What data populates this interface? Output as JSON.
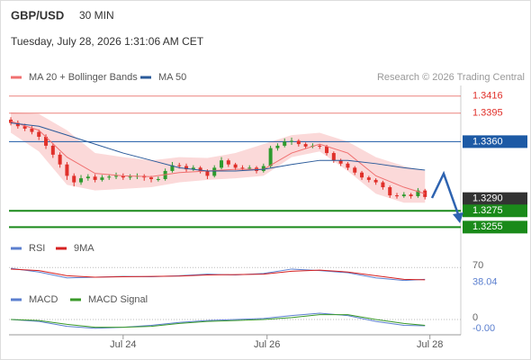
{
  "header": {
    "symbol": "GBP/USD",
    "interval": "30 MIN",
    "timestamp": "Tuesday, July 28, 2026 1:31:06 AM CET"
  },
  "chart_data": [
    {
      "type": "candlestick",
      "credit": "Research © 2026 Trading Central",
      "up_color": "#2e9b2e",
      "down_color": "#e0302a",
      "open": [
        1.3387,
        1.3383,
        1.3379,
        1.3376,
        1.3372,
        1.3366,
        1.3355,
        1.3344,
        1.3332,
        1.3318,
        1.331,
        1.3315,
        1.3317,
        1.3313,
        1.3316,
        1.3317,
        1.3318,
        1.3316,
        1.3317,
        1.3318,
        1.3316,
        1.3314,
        1.3314,
        1.3324,
        1.3331,
        1.333,
        1.3326,
        1.3328,
        1.3324,
        1.3318,
        1.3328,
        1.3337,
        1.3332,
        1.3328,
        1.3327,
        1.3328,
        1.3324,
        1.333,
        1.3352,
        1.3355,
        1.336,
        1.3361,
        1.3357,
        1.3354,
        1.3355,
        1.3354,
        1.3346,
        1.3337,
        1.3333,
        1.3328,
        1.3322,
        1.3316,
        1.3313,
        1.331,
        1.3304,
        1.3294,
        1.3293,
        1.3295,
        1.3293,
        1.33
      ],
      "high": [
        1.339,
        1.3386,
        1.3382,
        1.3379,
        1.3375,
        1.3369,
        1.3358,
        1.3347,
        1.3335,
        1.3321,
        1.3319,
        1.332,
        1.332,
        1.3319,
        1.332,
        1.3322,
        1.3321,
        1.332,
        1.3321,
        1.332,
        1.3318,
        1.3317,
        1.3327,
        1.3335,
        1.3334,
        1.3333,
        1.3331,
        1.333,
        1.3326,
        1.3331,
        1.3341,
        1.3339,
        1.3334,
        1.3331,
        1.3331,
        1.333,
        1.3333,
        1.3355,
        1.3358,
        1.3364,
        1.3365,
        1.3363,
        1.3359,
        1.3358,
        1.3357,
        1.3356,
        1.3348,
        1.3339,
        1.3335,
        1.333,
        1.3324,
        1.3318,
        1.3315,
        1.3312,
        1.3306,
        1.3297,
        1.3298,
        1.3297,
        1.3303,
        1.3302
      ],
      "low": [
        1.338,
        1.3376,
        1.3373,
        1.3369,
        1.3362,
        1.3351,
        1.334,
        1.3328,
        1.3313,
        1.3305,
        1.3307,
        1.3312,
        1.331,
        1.3311,
        1.3313,
        1.3314,
        1.3313,
        1.3313,
        1.3314,
        1.3312,
        1.331,
        1.3311,
        1.3312,
        1.3322,
        1.3327,
        1.3323,
        1.3324,
        1.3321,
        1.3314,
        1.3316,
        1.3326,
        1.3329,
        1.3325,
        1.3324,
        1.3325,
        1.3321,
        1.3322,
        1.3328,
        1.3349,
        1.3353,
        1.3356,
        1.3354,
        1.3351,
        1.3352,
        1.3351,
        1.3343,
        1.3334,
        1.333,
        1.3325,
        1.3319,
        1.3313,
        1.331,
        1.3307,
        1.3301,
        1.3291,
        1.329,
        1.3291,
        1.329,
        1.3291,
        1.3289
      ],
      "close": [
        1.3383,
        1.3379,
        1.3376,
        1.3372,
        1.3366,
        1.3355,
        1.3344,
        1.3332,
        1.3318,
        1.331,
        1.3315,
        1.3317,
        1.3313,
        1.3316,
        1.3317,
        1.3318,
        1.3316,
        1.3317,
        1.3318,
        1.3316,
        1.3314,
        1.3314,
        1.3324,
        1.3331,
        1.333,
        1.3326,
        1.3328,
        1.3324,
        1.3318,
        1.3328,
        1.3337,
        1.3332,
        1.3328,
        1.3327,
        1.3328,
        1.3324,
        1.333,
        1.3352,
        1.3355,
        1.336,
        1.3361,
        1.3357,
        1.3354,
        1.3355,
        1.3354,
        1.3346,
        1.3337,
        1.3333,
        1.3328,
        1.3322,
        1.3316,
        1.3313,
        1.331,
        1.3304,
        1.3294,
        1.3293,
        1.3295,
        1.3293,
        1.33,
        1.3292
      ],
      "overlays": [
        {
          "name": "MA 20 + Bollinger Bands",
          "color": "#f07070",
          "band_color": "#fbd9d9",
          "x": [
            0,
            4,
            8,
            12,
            16,
            20,
            24,
            28,
            32,
            36,
            40,
            44,
            48,
            52,
            56,
            59
          ],
          "values": [
            1.3385,
            1.3374,
            1.3341,
            1.3321,
            1.3318,
            1.3317,
            1.3322,
            1.3324,
            1.3326,
            1.3326,
            1.3346,
            1.3357,
            1.3346,
            1.3318,
            1.3304,
            1.3296
          ],
          "upper": [
            1.3396,
            1.3394,
            1.3374,
            1.3346,
            1.3341,
            1.3337,
            1.3341,
            1.334,
            1.3346,
            1.3357,
            1.3368,
            1.3371,
            1.336,
            1.3341,
            1.333,
            1.3324
          ],
          "lower": [
            1.3371,
            1.3348,
            1.3307,
            1.33,
            1.3302,
            1.3304,
            1.331,
            1.3313,
            1.3315,
            1.3318,
            1.3341,
            1.3348,
            1.3324,
            1.3296,
            1.3285,
            1.3285
          ]
        },
        {
          "name": "MA 50",
          "color": "#2a5a9a",
          "x": [
            0,
            4,
            8,
            12,
            16,
            20,
            24,
            28,
            32,
            36,
            40,
            44,
            48,
            52,
            56,
            59
          ],
          "values": [
            1.3383,
            1.3379,
            1.3368,
            1.3357,
            1.3346,
            1.3337,
            1.3328,
            1.3324,
            1.3324,
            1.3326,
            1.3332,
            1.3337,
            1.3337,
            1.3333,
            1.3328,
            1.3325
          ]
        }
      ],
      "xlim": [
        -0.26,
        64.1
      ],
      "ylim": [
        1.3241,
        1.3429
      ],
      "yticks": [
        1.3416,
        1.3395,
        {
          "value": 1.336,
          "label": "1.3360"
        },
        {
          "value": 1.329,
          "label": "1.3290"
        },
        1.3275,
        1.3255
      ],
      "ytick_colors": [
        "#e0302a",
        "#e0302a",
        "#1d5aa5",
        "#333333",
        "#1a8a1a",
        "#1a8a1a"
      ],
      "ytick_kinds": [
        "line",
        "line",
        "tag",
        "marker",
        "tag",
        "tag"
      ]
    },
    {
      "type": "line",
      "x": [
        0,
        4,
        8,
        12,
        16,
        20,
        24,
        28,
        32,
        36,
        40,
        44,
        48,
        52,
        56,
        59
      ],
      "series": [
        {
          "name": "RSI",
          "color": "#5b7fcf",
          "values": [
            68,
            58,
            42,
            44,
            46,
            45,
            48,
            52,
            50,
            54,
            66,
            62,
            56,
            42,
            35,
            38.04
          ]
        },
        {
          "name": "9MA",
          "color": "#d62020",
          "values": [
            66,
            62,
            48,
            44,
            45,
            46,
            47,
            50,
            51,
            52,
            60,
            63,
            58,
            48,
            38,
            37
          ]
        }
      ],
      "xlim": [
        -0.26,
        64.1
      ],
      "ylim": [
        0,
        100
      ],
      "yticks": [
        70
      ]
    },
    {
      "type": "line",
      "x": [
        0,
        4,
        8,
        12,
        16,
        20,
        24,
        28,
        32,
        36,
        40,
        44,
        48,
        52,
        56,
        59
      ],
      "series": [
        {
          "name": "MACD",
          "color": "#5b7fcf",
          "values": [
            0,
            -0.0002,
            -0.0007,
            -0.0009,
            -0.0008,
            -0.0006,
            -0.0003,
            -0.0001,
            0,
            0.0001,
            0.0004,
            0.00065,
            0.0004,
            -0.0002,
            -0.0006,
            -0.00065
          ],
          "value_labels": [
            null,
            null,
            null,
            null,
            null,
            null,
            null,
            null,
            null,
            null,
            null,
            null,
            null,
            null,
            null,
            "-0.00"
          ]
        },
        {
          "name": "MACD Signal",
          "color": "#3a9a2a",
          "values": [
            0,
            -0.0001,
            -0.0005,
            -0.0008,
            -0.0008,
            -0.0007,
            -0.0004,
            -0.0002,
            -0.0001,
            0,
            0.0002,
            0.0005,
            0.0005,
            0,
            -0.0004,
            -0.0006
          ]
        }
      ],
      "xlim": [
        -0.26,
        64.1
      ],
      "ylim": [
        -0.0012,
        0.0012
      ],
      "yticks": [
        0
      ],
      "xticks": [
        {
          "value": 16,
          "label": "Jul 24"
        },
        {
          "value": 36.5,
          "label": "Jul 26"
        },
        {
          "value": 59.7,
          "label": "Jul 28"
        }
      ]
    }
  ]
}
